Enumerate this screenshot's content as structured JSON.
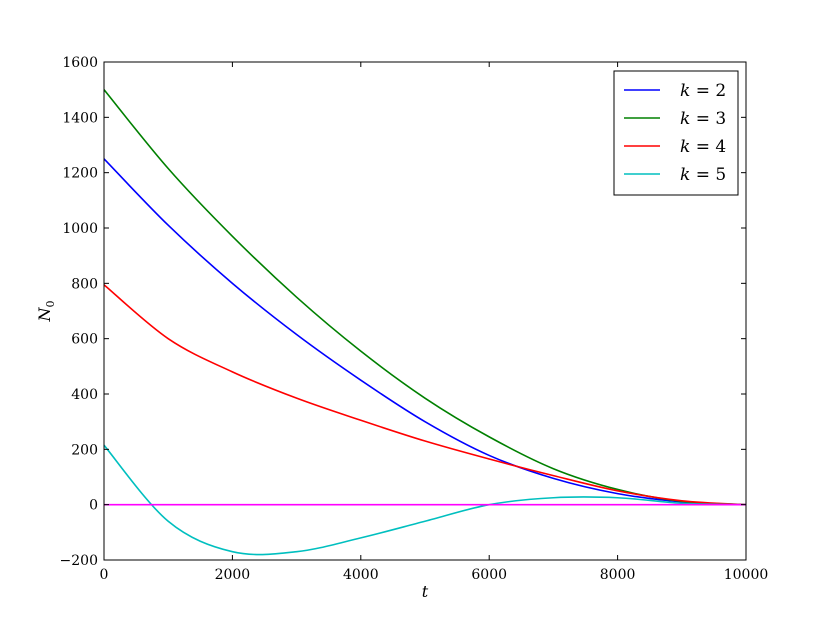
{
  "chart_data": {
    "type": "line",
    "xlabel": "t",
    "ylabel_main": "N",
    "ylabel_sub": "0",
    "xlim": [
      0,
      10000
    ],
    "ylim": [
      -200,
      1600
    ],
    "xticks": [
      {
        "value": 0,
        "label": "0"
      },
      {
        "value": 2000,
        "label": "2000"
      },
      {
        "value": 4000,
        "label": "4000"
      },
      {
        "value": 6000,
        "label": "6000"
      },
      {
        "value": 8000,
        "label": "8000"
      },
      {
        "value": 10000,
        "label": "10000"
      }
    ],
    "yticks": [
      {
        "value": -200,
        "label": "−200"
      },
      {
        "value": 0,
        "label": "0"
      },
      {
        "value": 200,
        "label": "200"
      },
      {
        "value": 400,
        "label": "400"
      },
      {
        "value": 600,
        "label": "600"
      },
      {
        "value": 800,
        "label": "800"
      },
      {
        "value": 1000,
        "label": "1000"
      },
      {
        "value": 1200,
        "label": "1200"
      },
      {
        "value": 1400,
        "label": "1400"
      },
      {
        "value": 1600,
        "label": "1600"
      }
    ],
    "grid": false,
    "legend_position": "top-right",
    "x": [
      0,
      1000,
      2000,
      3000,
      4000,
      5000,
      6000,
      7000,
      8000,
      9000,
      10000
    ],
    "series": [
      {
        "name": "k = 2",
        "legend_var": "k",
        "legend_value": "2",
        "color": "#0000ff",
        "values": [
          1250,
          1010,
          800,
          615,
          450,
          300,
          178,
          95,
          40,
          10,
          0
        ]
      },
      {
        "name": "k = 3",
        "legend_var": "k",
        "legend_value": "3",
        "color": "#008000",
        "values": [
          1500,
          1215,
          970,
          750,
          555,
          385,
          245,
          130,
          55,
          12,
          0
        ]
      },
      {
        "name": "k = 4",
        "legend_var": "k",
        "legend_value": "4",
        "color": "#ff0000",
        "values": [
          795,
          600,
          480,
          385,
          305,
          230,
          165,
          105,
          50,
          14,
          0
        ]
      },
      {
        "name": "k = 5",
        "legend_var": "k",
        "legend_value": "5",
        "color": "#00bfbf",
        "values": [
          215,
          -60,
          -170,
          -170,
          -120,
          -60,
          0,
          25,
          25,
          5,
          0
        ]
      }
    ],
    "reference_line": {
      "y": 0,
      "color": "#ff00ff"
    }
  }
}
